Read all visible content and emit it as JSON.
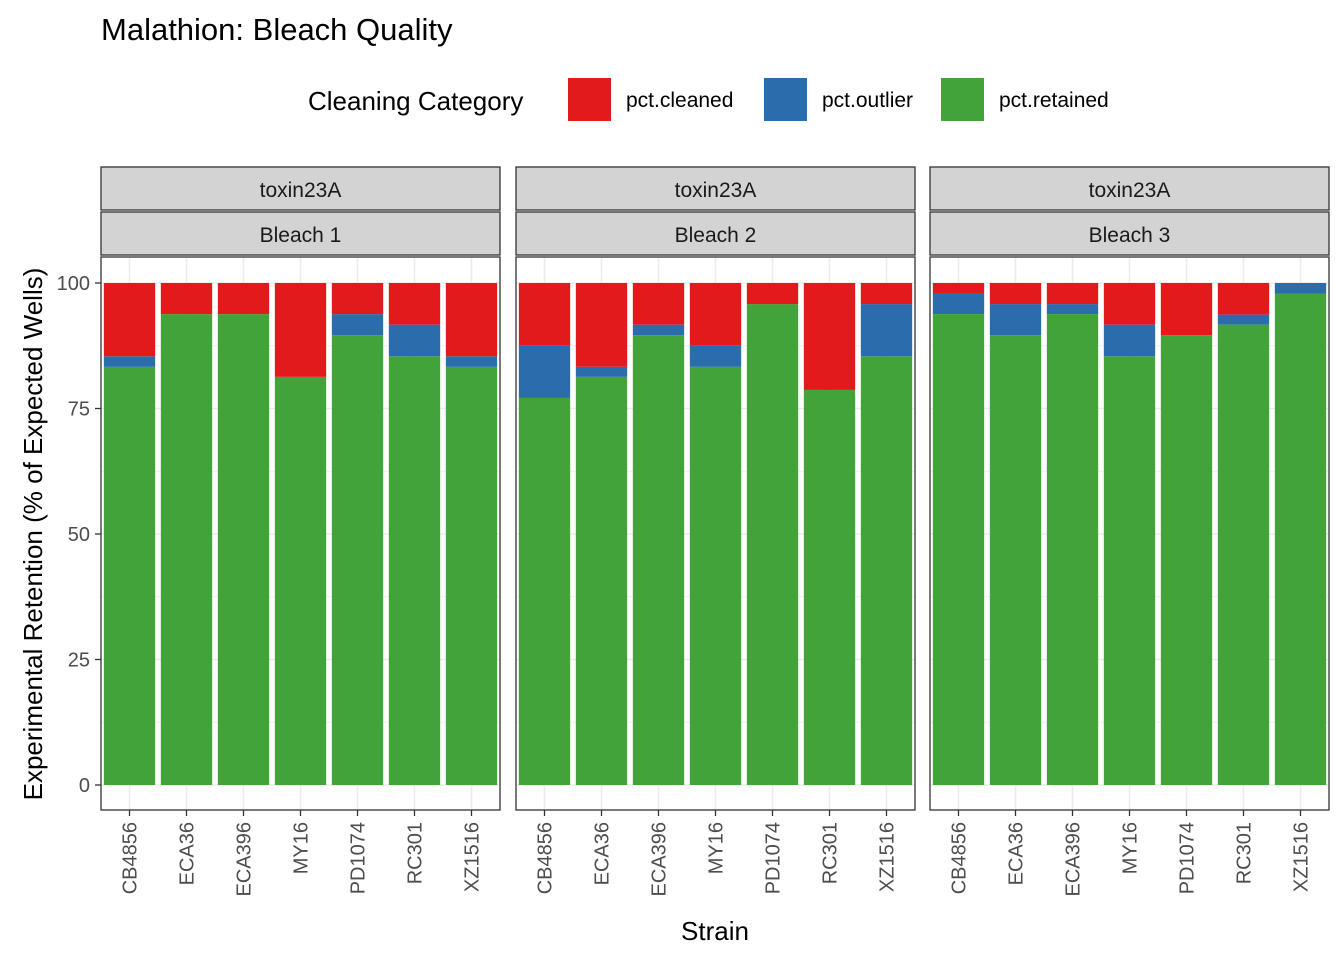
{
  "chart_data": {
    "type": "bar",
    "stacked": true,
    "title": "Malathion: Bleach Quality",
    "xlabel": "Strain",
    "ylabel": "Experimental Retention (% of Expected Wells)",
    "ylim": [
      0,
      100
    ],
    "yticks": [
      0,
      25,
      50,
      75,
      100
    ],
    "legend": {
      "title": "Cleaning Category",
      "position": "top",
      "entries": [
        "pct.cleaned",
        "pct.outlier",
        "pct.retained"
      ]
    },
    "colors": {
      "pct.cleaned": "#e31a1c",
      "pct.outlier": "#2b6cad",
      "pct.retained": "#41a33a"
    },
    "categories": [
      "CB4856",
      "ECA36",
      "ECA396",
      "MY16",
      "PD1074",
      "RC301",
      "XZ1516"
    ],
    "stack_order": [
      "pct.retained",
      "pct.outlier",
      "pct.cleaned"
    ],
    "panels": [
      {
        "strip_top": "toxin23A",
        "strip_bottom": "Bleach 1",
        "series": [
          {
            "name": "pct.retained",
            "values": [
              83.3,
              93.8,
              93.8,
              81.3,
              89.6,
              85.4,
              83.3
            ]
          },
          {
            "name": "pct.outlier",
            "values": [
              2.1,
              0,
              0,
              0,
              4.2,
              6.3,
              2.1
            ]
          },
          {
            "name": "pct.cleaned",
            "values": [
              14.6,
              6.2,
              6.2,
              18.7,
              6.2,
              8.3,
              14.6
            ]
          }
        ]
      },
      {
        "strip_top": "toxin23A",
        "strip_bottom": "Bleach 2",
        "series": [
          {
            "name": "pct.retained",
            "values": [
              77.1,
              81.3,
              89.6,
              83.3,
              95.8,
              78.7,
              85.4
            ]
          },
          {
            "name": "pct.outlier",
            "values": [
              10.4,
              2.0,
              2.1,
              4.2,
              0,
              0,
              10.4
            ]
          },
          {
            "name": "pct.cleaned",
            "values": [
              12.5,
              16.7,
              8.3,
              12.5,
              4.2,
              21.3,
              4.2
            ]
          }
        ]
      },
      {
        "strip_top": "toxin23A",
        "strip_bottom": "Bleach 3",
        "series": [
          {
            "name": "pct.retained",
            "values": [
              93.8,
              89.6,
              93.8,
              85.4,
              89.6,
              91.7,
              97.9
            ]
          },
          {
            "name": "pct.outlier",
            "values": [
              4.1,
              6.2,
              2.0,
              6.3,
              0,
              2.0,
              2.1
            ]
          },
          {
            "name": "pct.cleaned",
            "values": [
              2.1,
              4.2,
              4.2,
              8.3,
              10.4,
              6.3,
              0
            ]
          }
        ]
      }
    ]
  }
}
